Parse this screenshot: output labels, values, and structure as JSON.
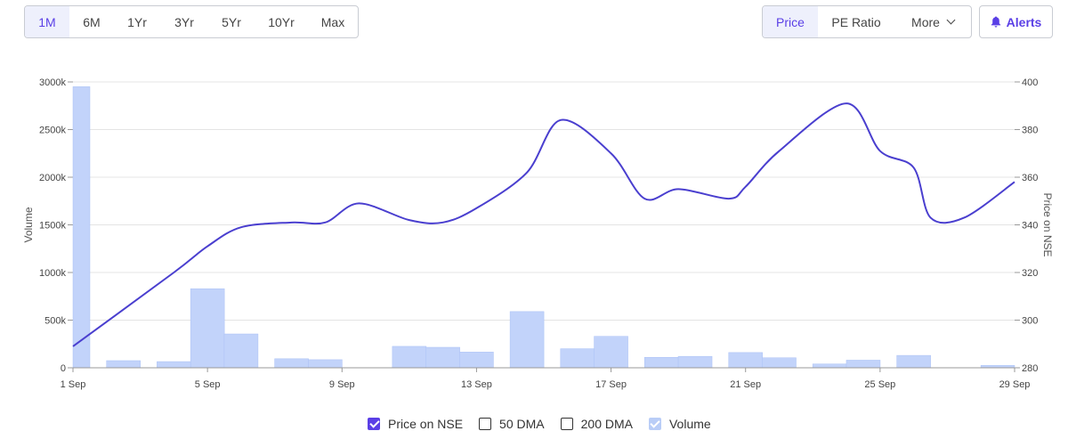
{
  "toolbar": {
    "ranges": [
      "1M",
      "6M",
      "1Yr",
      "3Yr",
      "5Yr",
      "10Yr",
      "Max"
    ],
    "active_range": "1M",
    "metrics": [
      "Price",
      "PE Ratio",
      "More"
    ],
    "active_metric": "Price",
    "alerts_label": "Alerts"
  },
  "colors": {
    "accent": "#5a3fe6",
    "price_line": "#4a3fcf",
    "volume_bar": "#c2d3fa",
    "volume_bar_stroke": "#aac1f5",
    "grid": "#e4e4e4"
  },
  "legend": {
    "items": [
      {
        "label": "Price on NSE",
        "checked": true
      },
      {
        "label": "50 DMA",
        "checked": false
      },
      {
        "label": "200 DMA",
        "checked": false
      },
      {
        "label": "Volume",
        "checked": true
      }
    ]
  },
  "chart_data": {
    "type": "bar+line",
    "title": "",
    "x_labels": [
      "1 Sep",
      "5 Sep",
      "9 Sep",
      "13 Sep",
      "17 Sep",
      "21 Sep",
      "25 Sep",
      "29 Sep"
    ],
    "left_axis": {
      "label": "Volume",
      "ticks": [
        "0",
        "500k",
        "1000k",
        "1500k",
        "2000k",
        "2500k",
        "3000k"
      ],
      "range": [
        0,
        3000000
      ]
    },
    "right_axis": {
      "label": "Price on NSE",
      "ticks": [
        "280",
        "300",
        "320",
        "340",
        "360",
        "380",
        "400"
      ],
      "range": [
        280,
        400
      ]
    },
    "x_range": [
      1,
      29
    ],
    "grid": true,
    "series": [
      {
        "name": "Volume",
        "type": "bar",
        "axis": "left",
        "points": [
          {
            "x": 1,
            "y": 2950000
          },
          {
            "x": 2.5,
            "y": 75000
          },
          {
            "x": 4,
            "y": 65000
          },
          {
            "x": 5,
            "y": 830000
          },
          {
            "x": 6,
            "y": 355000
          },
          {
            "x": 7.5,
            "y": 95000
          },
          {
            "x": 8.5,
            "y": 85000
          },
          {
            "x": 11,
            "y": 225000
          },
          {
            "x": 12,
            "y": 215000
          },
          {
            "x": 13,
            "y": 165000
          },
          {
            "x": 14.5,
            "y": 590000
          },
          {
            "x": 16,
            "y": 200000
          },
          {
            "x": 17,
            "y": 330000
          },
          {
            "x": 18.5,
            "y": 110000
          },
          {
            "x": 19.5,
            "y": 120000
          },
          {
            "x": 21,
            "y": 160000
          },
          {
            "x": 22,
            "y": 105000
          },
          {
            "x": 23.5,
            "y": 40000
          },
          {
            "x": 24.5,
            "y": 80000
          },
          {
            "x": 26,
            "y": 130000
          },
          {
            "x": 28.5,
            "y": 25000
          }
        ]
      },
      {
        "name": "Price on NSE",
        "type": "line",
        "axis": "right",
        "points": [
          {
            "x": 1,
            "y": 289
          },
          {
            "x": 4,
            "y": 320
          },
          {
            "x": 5,
            "y": 331
          },
          {
            "x": 6,
            "y": 339
          },
          {
            "x": 7.5,
            "y": 341
          },
          {
            "x": 8.5,
            "y": 341
          },
          {
            "x": 9.5,
            "y": 349
          },
          {
            "x": 11,
            "y": 342
          },
          {
            "x": 12,
            "y": 341
          },
          {
            "x": 13,
            "y": 347
          },
          {
            "x": 14.5,
            "y": 362
          },
          {
            "x": 15.5,
            "y": 384
          },
          {
            "x": 17,
            "y": 370
          },
          {
            "x": 18,
            "y": 351
          },
          {
            "x": 19,
            "y": 355
          },
          {
            "x": 20.5,
            "y": 351
          },
          {
            "x": 21,
            "y": 356
          },
          {
            "x": 22,
            "y": 371
          },
          {
            "x": 24,
            "y": 391
          },
          {
            "x": 25,
            "y": 371
          },
          {
            "x": 26,
            "y": 364
          },
          {
            "x": 26.5,
            "y": 343
          },
          {
            "x": 27.5,
            "y": 343
          },
          {
            "x": 29,
            "y": 358
          }
        ]
      }
    ]
  }
}
